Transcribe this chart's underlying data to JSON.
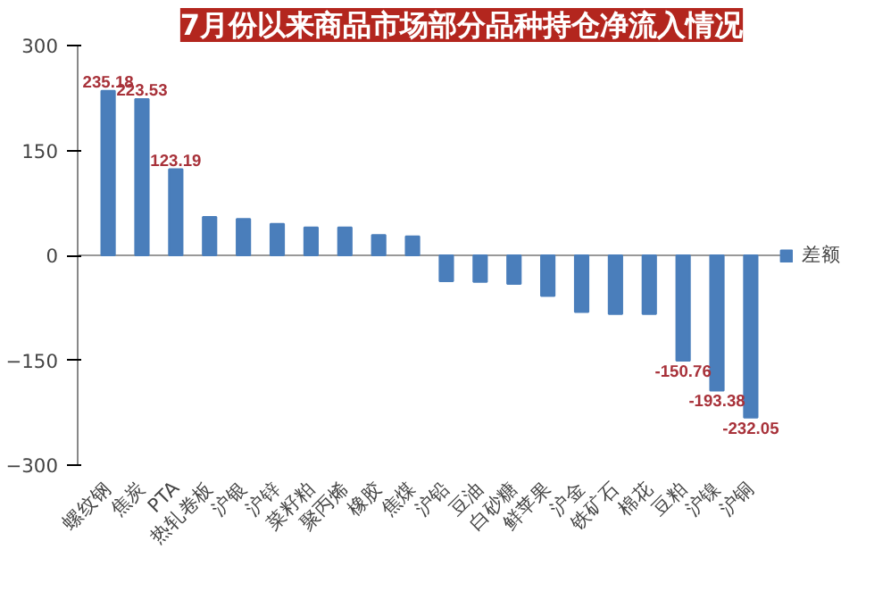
{
  "chart_data": {
    "type": "bar",
    "title": "7月份以来商品市场部分品种持仓净流入情况",
    "categories": [
      "螺纹钢",
      "焦炭",
      "PTA",
      "热轧卷板",
      "沪银",
      "沪锌",
      "菜籽粕",
      "聚丙烯",
      "橡胶",
      "焦煤",
      "沪铅",
      "豆油",
      "白砂糖",
      "鲜苹果",
      "沪金",
      "铁矿石",
      "棉花",
      "豆粕",
      "沪镍",
      "沪铜"
    ],
    "series": [
      {
        "name": "差额",
        "color": "#4a7ebb",
        "values": [
          235.18,
          223.53,
          123.19,
          55,
          52,
          45,
          40,
          40,
          29,
          27,
          -37,
          -38,
          -41,
          -58,
          -81,
          -84,
          -84,
          -150.76,
          -193.38,
          -232.05
        ],
        "value_labels": [
          "235.18",
          "223.53",
          "123.19",
          null,
          null,
          null,
          null,
          null,
          null,
          null,
          null,
          null,
          null,
          null,
          null,
          null,
          null,
          "-150.76",
          "-193.38",
          "-232.05"
        ]
      }
    ],
    "ylim": [
      -300,
      300
    ],
    "yticks": [
      -300,
      -150,
      0,
      150,
      300
    ],
    "legend": "right"
  }
}
